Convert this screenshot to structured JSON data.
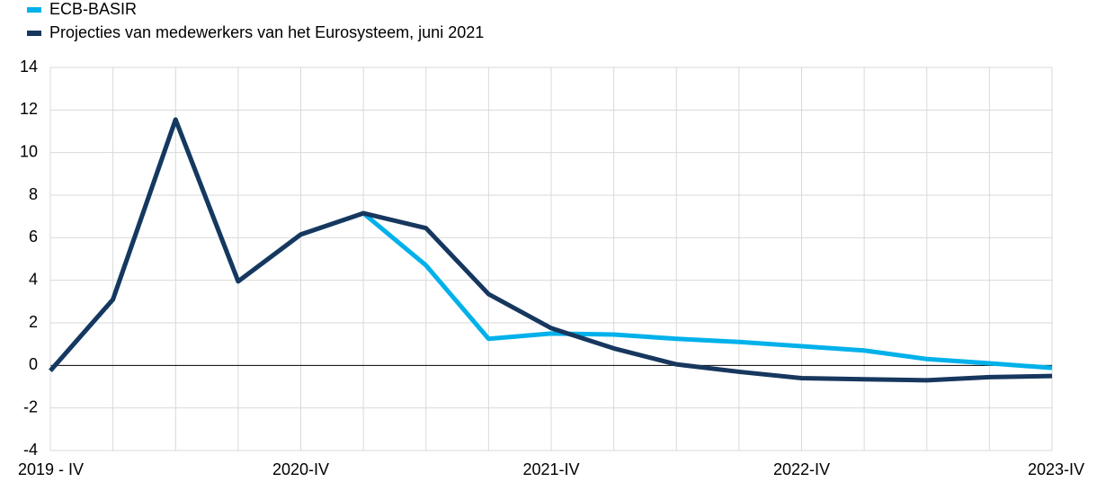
{
  "chart_data": {
    "type": "line",
    "categories": [
      "2019 - IV",
      null,
      null,
      null,
      "2020-IV",
      null,
      null,
      null,
      "2021-IV",
      null,
      null,
      null,
      "2022-IV",
      null,
      null,
      null,
      "2023-IV"
    ],
    "series": [
      {
        "name": "ECB-BASIR",
        "color": "#00b1ea",
        "values": [
          -0.25,
          3.1,
          11.55,
          3.95,
          6.15,
          7.15,
          4.7,
          1.25,
          1.5,
          1.45,
          1.25,
          1.1,
          0.9,
          0.7,
          0.3,
          0.1,
          -0.12
        ]
      },
      {
        "name": "Projecties van medewerkers van het Eurosysteem, juni 2021",
        "color": "#17375e",
        "values": [
          -0.25,
          3.1,
          11.55,
          3.95,
          6.15,
          7.15,
          6.45,
          3.35,
          1.75,
          0.8,
          0.05,
          -0.3,
          -0.6,
          -0.65,
          -0.7,
          -0.55,
          -0.5
        ]
      }
    ],
    "ylim": [
      -4,
      14
    ],
    "yticks": [
      -4,
      -2,
      0,
      2,
      4,
      6,
      8,
      10,
      12,
      14
    ],
    "grid": true
  }
}
